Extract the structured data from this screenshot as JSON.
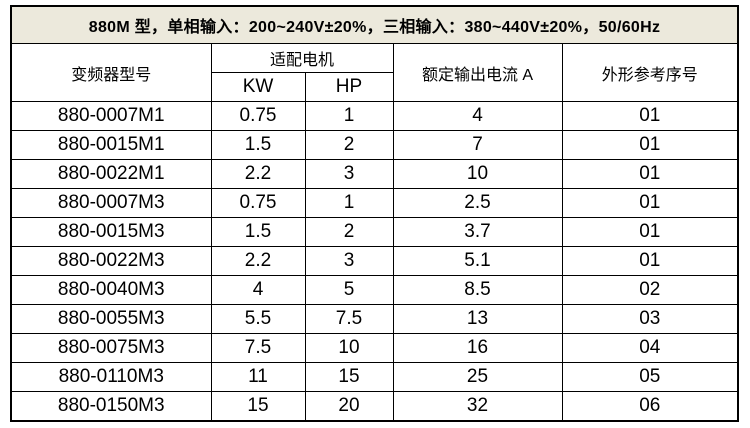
{
  "title": "880M 型，单相输入：200~240V±20%，三相输入：380~440V±20%，50/60Hz",
  "colors": {
    "title_bg": "#ece9dc",
    "border": "#000000",
    "page_bg": "#ffffff",
    "text": "#000000"
  },
  "table": {
    "col_model": "变频器型号",
    "col_motor_group": "适配电机",
    "col_kw": "KW",
    "col_hp": "HP",
    "col_current": "额定输出电流 A",
    "col_ref": "外形参考序号",
    "rows": [
      {
        "model": "880-0007M1",
        "kw": "0.75",
        "hp": "1",
        "current": "4",
        "ref": "01"
      },
      {
        "model": "880-0015M1",
        "kw": "1.5",
        "hp": "2",
        "current": "7",
        "ref": "01"
      },
      {
        "model": "880-0022M1",
        "kw": "2.2",
        "hp": "3",
        "current": "10",
        "ref": "01"
      },
      {
        "model": "880-0007M3",
        "kw": "0.75",
        "hp": "1",
        "current": "2.5",
        "ref": "01"
      },
      {
        "model": "880-0015M3",
        "kw": "1.5",
        "hp": "2",
        "current": "3.7",
        "ref": "01"
      },
      {
        "model": "880-0022M3",
        "kw": "2.2",
        "hp": "3",
        "current": "5.1",
        "ref": "01"
      },
      {
        "model": "880-0040M3",
        "kw": "4",
        "hp": "5",
        "current": "8.5",
        "ref": "02"
      },
      {
        "model": "880-0055M3",
        "kw": "5.5",
        "hp": "7.5",
        "current": "13",
        "ref": "03"
      },
      {
        "model": "880-0075M3",
        "kw": "7.5",
        "hp": "10",
        "current": "16",
        "ref": "04"
      },
      {
        "model": "880-0110M3",
        "kw": "11",
        "hp": "15",
        "current": "25",
        "ref": "05"
      },
      {
        "model": "880-0150M3",
        "kw": "15",
        "hp": "20",
        "current": "32",
        "ref": "06"
      }
    ]
  }
}
